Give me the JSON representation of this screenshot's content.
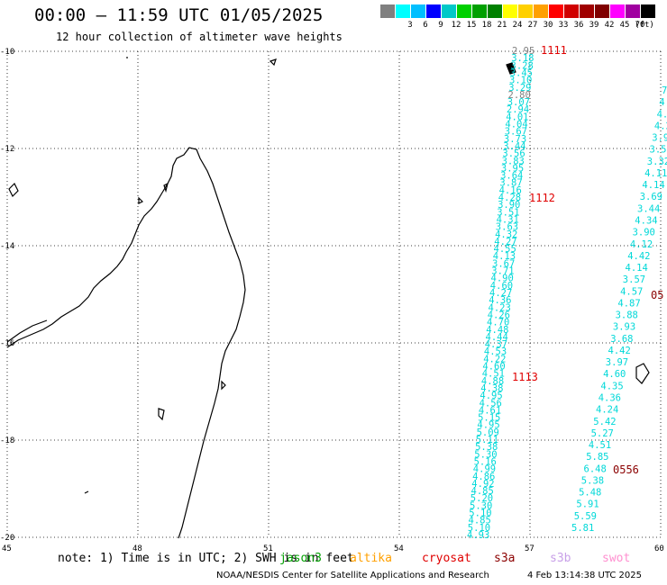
{
  "title": "00:00 – 11:59 UTC 01/05/2025",
  "subtitle": "12 hour collection of altimeter wave heights",
  "legend": {
    "unit": "(ft)",
    "items": [
      {
        "color": "#808080",
        "label": ""
      },
      {
        "color": "#00ffff",
        "label": "3"
      },
      {
        "color": "#00bfff",
        "label": "6"
      },
      {
        "color": "#0000ff",
        "label": "9"
      },
      {
        "color": "#00c8c8",
        "label": "12"
      },
      {
        "color": "#00d000",
        "label": "15"
      },
      {
        "color": "#00a000",
        "label": "18"
      },
      {
        "color": "#008000",
        "label": "21"
      },
      {
        "color": "#ffff00",
        "label": "24"
      },
      {
        "color": "#ffd000",
        "label": "27"
      },
      {
        "color": "#ffa000",
        "label": "30"
      },
      {
        "color": "#ff0000",
        "label": "33"
      },
      {
        "color": "#d00000",
        "label": "36"
      },
      {
        "color": "#a00000",
        "label": "39"
      },
      {
        "color": "#800000",
        "label": "42"
      },
      {
        "color": "#ff00ff",
        "label": "45"
      },
      {
        "color": "#a000a0",
        "label": "70"
      },
      {
        "color": "#000000",
        "label": ""
      }
    ]
  },
  "map": {
    "lat_labels": [
      "-10",
      "-12",
      "-14",
      "-16",
      "-18",
      "-20"
    ],
    "lon_labels": [
      "45",
      "48",
      "51",
      "54",
      "57",
      "60"
    ],
    "pass_times": [
      {
        "label": "1111",
        "color": "#e00000"
      },
      {
        "label": "1112",
        "color": "#e00000"
      },
      {
        "label": "1113",
        "color": "#e00000"
      },
      {
        "label": "0556",
        "color": "#8b0000"
      },
      {
        "label": "05",
        "color": "#8b0000"
      }
    ],
    "track_a": [
      "2.95",
      "3.18",
      "3.28",
      "3.45",
      "3.10",
      "3.29",
      "2.80",
      "3.07",
      "2.94",
      "4.01",
      "4.04",
      "3.67",
      "3.73",
      "3.44",
      "3.56",
      "3.83",
      "3.95",
      "3.64",
      "3.87",
      "4.16",
      "4.28",
      "3.90",
      "3.51",
      "4.31",
      "3.63",
      "4.32",
      "4.27",
      "4.55",
      "4.13",
      "3.67",
      "3.71",
      "4.90",
      "4.60",
      "4.27",
      "4.36",
      "4.23",
      "4.26",
      "4.70",
      "4.48",
      "4.44",
      "4.37",
      "4.53",
      "4.22",
      "4.60",
      "4.51",
      "4.88",
      "4.38",
      "4.95",
      "4.56",
      "4.61",
      "5.15",
      "4.95",
      "5.09",
      "5.11",
      "5.38",
      "5.30",
      "5.16",
      "4.99",
      "4.86",
      "4.92",
      "4.85",
      "5.20",
      "5.30",
      "5.10",
      "4.85",
      "5.10",
      "4.93"
    ],
    "track_b": [
      "7.",
      "4.",
      "4.",
      "4.2",
      "3.9",
      "3.53",
      "3.32",
      "4.11",
      "4.14",
      "3.69",
      "3.44",
      "4.34",
      "3.90",
      "4.12",
      "4.42",
      "4.14",
      "3.57",
      "4.57",
      "4.87",
      "3.88",
      "3.93",
      "3.68",
      "4.42",
      "3.97",
      "4.60",
      "4.35",
      "4.36",
      "4.24",
      "5.42",
      "5.27",
      "4.51",
      "5.85",
      "6.48",
      "5.38",
      "5.48",
      "5.91",
      "5.59",
      "5.81"
    ]
  },
  "note": {
    "text": "note: 1) Time is in UTC; 2) SWH is in feet",
    "satellites": [
      {
        "name": "jason3",
        "color": "#00a000"
      },
      {
        "name": "altika",
        "color": "#ffa000"
      },
      {
        "name": "cryosat",
        "color": "#e00000"
      },
      {
        "name": "s3a",
        "color": "#8b0000"
      },
      {
        "name": "s3b",
        "color": "#c8a0e8"
      },
      {
        "name": "swot",
        "color": "#ff90d0"
      }
    ]
  },
  "footer": {
    "credit": "NOAA/NESDIS Center for Satellite Applications and Research",
    "timestamp": "4 Feb 13:14:38 UTC 2025"
  }
}
